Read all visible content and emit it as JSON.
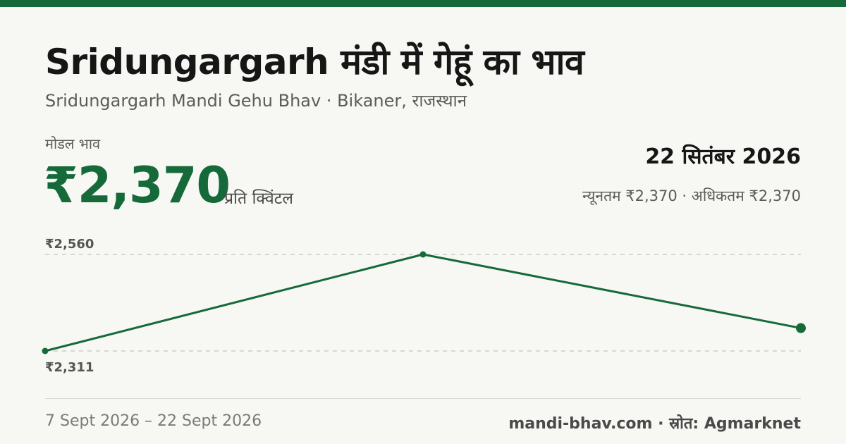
{
  "header": {
    "title": "Sridungargarh मंडी में गेहूं का भाव",
    "subtitle": "Sridungargarh Mandi Gehu Bhav · Bikaner, राजस्थान"
  },
  "summary": {
    "modal_label": "मोडल भाव",
    "price": "₹2,370",
    "unit": "प्रति क्विंटल",
    "date": "22 सितंबर 2026",
    "minmax": "न्यूनतम ₹2,370 · अधिकतम ₹2,370"
  },
  "footer": {
    "range": "7 Sept 2026 – 22 Sept 2026",
    "source": "mandi-bhav.com · स्रोत: Agmarknet"
  },
  "colors": {
    "accent": "#166a3a",
    "grid": "#b8b8b0",
    "background": "#f7f7f3"
  },
  "chart_data": {
    "type": "line",
    "x": [
      "7 Sept 2026",
      "",
      "22 Sept 2026"
    ],
    "values": [
      2311,
      2560,
      2370
    ],
    "ylim": [
      2311,
      2560
    ],
    "gridlines": [
      2560,
      2311
    ],
    "tick_labels": {
      "top": "₹2,560",
      "bottom": "₹2,311"
    },
    "grid": true,
    "title": "",
    "xlabel": "",
    "ylabel": ""
  }
}
